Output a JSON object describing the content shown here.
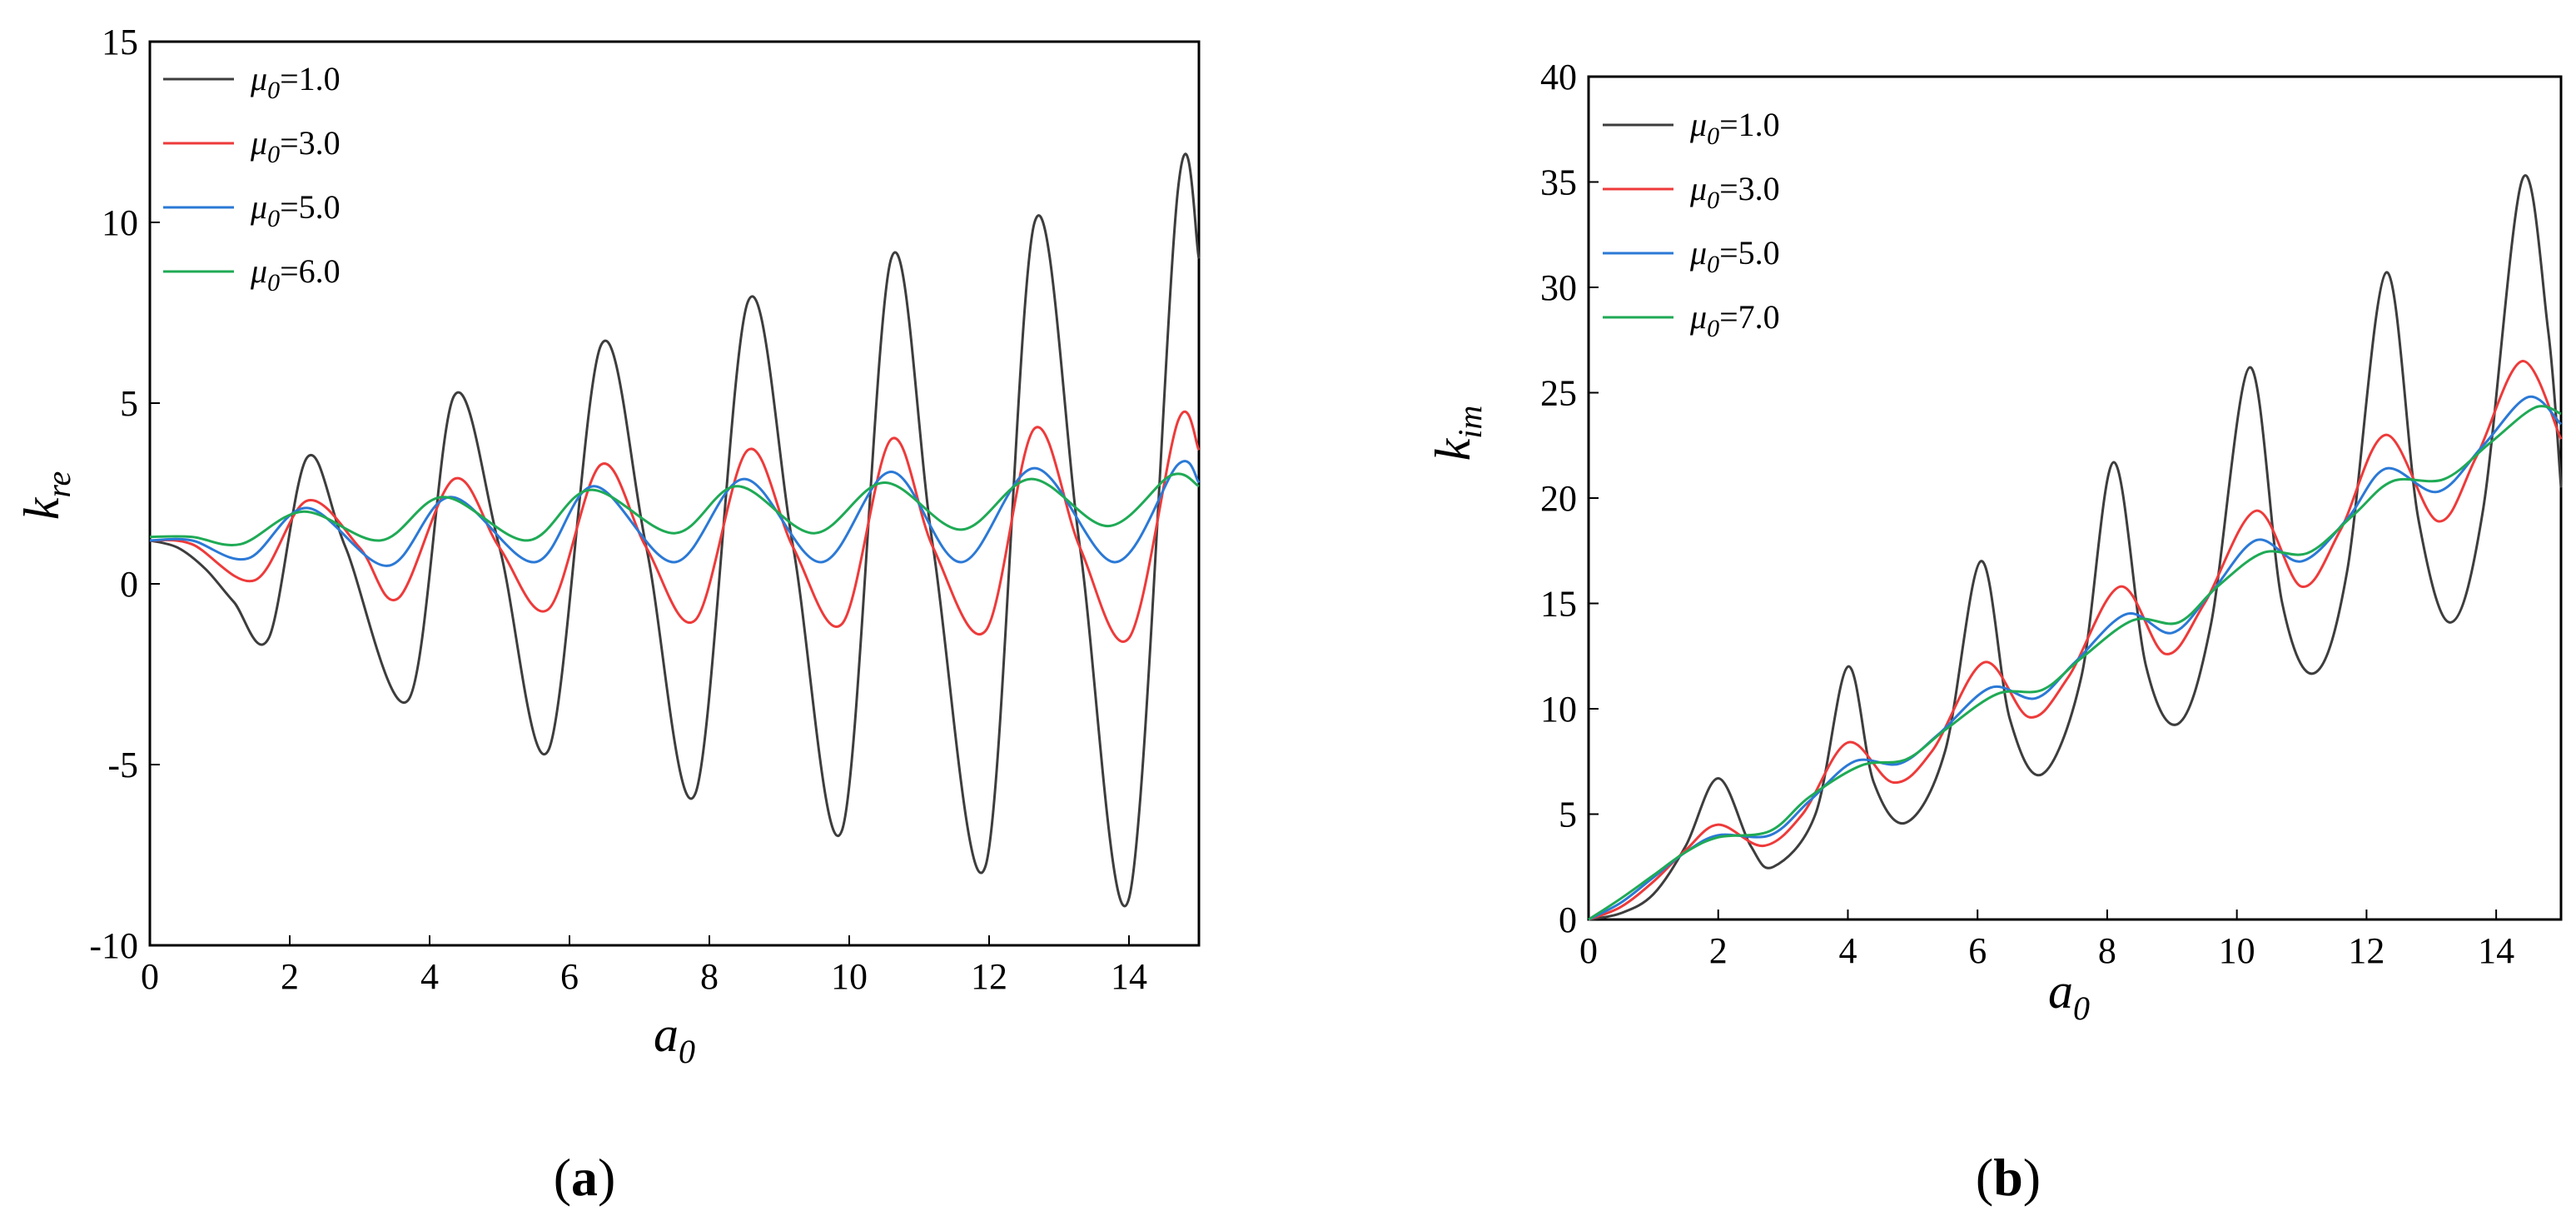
{
  "chart_data": [
    {
      "type": "line",
      "panel": "(a)",
      "panel_letter": "a",
      "xlabel": "a",
      "xlabel_sub": "0",
      "ylabel": "k",
      "ylabel_sub": "re",
      "xlim": [
        0,
        15
      ],
      "ylim": [
        -10,
        15
      ],
      "xticks": [
        0,
        2,
        4,
        6,
        8,
        10,
        12,
        14
      ],
      "yticks": [
        -10,
        -5,
        0,
        5,
        10,
        15
      ],
      "grid": false,
      "legend_position": "top-left",
      "series": [
        {
          "name": "μ0=1.0",
          "legend_mu": "μ",
          "legend_sub": "0",
          "legend_value": "=1.0",
          "color": "#3d3d3d",
          "x": [
            0,
            0.4,
            0.8,
            1.2,
            1.7,
            2.25,
            2.8,
            3.7,
            4.35,
            5.0,
            5.7,
            6.45,
            7.1,
            7.8,
            8.55,
            9.2,
            9.9,
            10.6,
            11.2,
            11.95,
            12.65,
            13.3,
            14.0,
            14.7,
            15.0
          ],
          "y": [
            1.2,
            1.0,
            0.4,
            -0.5,
            -1.5,
            3.5,
            1.0,
            -3.2,
            5.2,
            1.0,
            -4.6,
            6.6,
            1.0,
            -5.8,
            7.8,
            1.0,
            -6.8,
            9.0,
            1.0,
            -7.8,
            10.0,
            1.0,
            -8.7,
            10.9,
            9.0
          ]
        },
        {
          "name": "μ0=3.0",
          "legend_mu": "μ",
          "legend_sub": "0",
          "legend_value": "=3.0",
          "color": "#ee3a3a",
          "x": [
            0,
            0.6,
            1.5,
            2.25,
            3.0,
            3.55,
            4.35,
            5.0,
            5.7,
            6.45,
            7.1,
            7.8,
            8.55,
            9.2,
            9.9,
            10.6,
            11.2,
            11.95,
            12.65,
            13.3,
            14.0,
            14.7,
            15.0
          ],
          "y": [
            1.2,
            1.1,
            0.1,
            2.3,
            1.0,
            -0.4,
            2.9,
            1.0,
            -0.7,
            3.3,
            1.0,
            -1.0,
            3.7,
            1.0,
            -1.1,
            4.0,
            1.0,
            -1.3,
            4.3,
            1.0,
            -1.5,
            4.5,
            3.7
          ]
        },
        {
          "name": "μ0=5.0",
          "legend_mu": "μ",
          "legend_sub": "0",
          "legend_value": "=5.0",
          "color": "#2b79d6",
          "x": [
            0,
            0.6,
            1.4,
            2.25,
            3.4,
            4.3,
            5.5,
            6.35,
            7.5,
            8.5,
            9.6,
            10.6,
            11.6,
            12.65,
            13.8,
            14.7,
            15.0
          ],
          "y": [
            1.2,
            1.2,
            0.7,
            2.1,
            0.5,
            2.4,
            0.6,
            2.7,
            0.6,
            2.9,
            0.6,
            3.1,
            0.6,
            3.2,
            0.6,
            3.3,
            2.8
          ]
        },
        {
          "name": "μ0=6.0",
          "legend_mu": "μ",
          "legend_sub": "0",
          "legend_value": "=6.0",
          "color": "#1faa55",
          "x": [
            0,
            0.6,
            1.3,
            2.2,
            3.3,
            4.2,
            5.4,
            6.3,
            7.5,
            8.4,
            9.5,
            10.5,
            11.6,
            12.6,
            13.7,
            14.6,
            15.0
          ],
          "y": [
            1.3,
            1.3,
            1.1,
            2.0,
            1.2,
            2.4,
            1.2,
            2.6,
            1.4,
            2.7,
            1.4,
            2.8,
            1.5,
            2.9,
            1.6,
            3.0,
            2.7
          ]
        }
      ]
    },
    {
      "type": "line",
      "panel": "(b)",
      "panel_letter": "b",
      "xlabel": "a",
      "xlabel_sub": "0",
      "ylabel": "k",
      "ylabel_sub": "im",
      "xlim": [
        0,
        15
      ],
      "ylim": [
        0,
        40
      ],
      "xticks": [
        0,
        2,
        4,
        6,
        8,
        10,
        12,
        14
      ],
      "yticks": [
        0,
        5,
        10,
        15,
        20,
        25,
        30,
        35,
        40
      ],
      "grid": false,
      "legend_position": "top-left",
      "series": [
        {
          "name": "μ0=1.0",
          "legend_mu": "μ",
          "legend_sub": "0",
          "legend_value": "=1.0",
          "color": "#3d3d3d",
          "x": [
            0,
            0.5,
            1.0,
            1.5,
            2.0,
            2.5,
            2.85,
            3.5,
            4.0,
            4.4,
            4.9,
            5.5,
            6.05,
            6.5,
            7.0,
            7.6,
            8.1,
            8.6,
            9.1,
            9.6,
            10.2,
            10.7,
            11.2,
            11.7,
            12.3,
            12.8,
            13.3,
            13.8,
            14.4,
            14.8,
            15.0
          ],
          "y": [
            0,
            0.3,
            1.2,
            3.5,
            6.7,
            3.5,
            2.5,
            5.0,
            12.0,
            6.5,
            4.6,
            8.0,
            17.0,
            9.5,
            6.9,
            11.5,
            21.7,
            12.0,
            9.3,
            14.0,
            26.2,
            15.0,
            11.7,
            16.5,
            30.7,
            19.0,
            14.1,
            19.5,
            35.1,
            28.0,
            20.5
          ]
        },
        {
          "name": "μ0=3.0",
          "legend_mu": "μ",
          "legend_sub": "0",
          "legend_value": "=3.0",
          "color": "#ee3a3a",
          "x": [
            0,
            0.5,
            1.0,
            1.5,
            2.0,
            2.7,
            3.3,
            4.0,
            4.7,
            5.3,
            6.1,
            6.8,
            7.4,
            8.2,
            8.9,
            9.5,
            10.3,
            11.0,
            11.6,
            12.3,
            13.1,
            13.7,
            14.4,
            15.0
          ],
          "y": [
            0,
            0.6,
            1.8,
            3.3,
            4.5,
            3.5,
            5.0,
            8.4,
            6.5,
            8.0,
            12.2,
            9.6,
            11.5,
            15.8,
            12.6,
            15.0,
            19.4,
            15.8,
            18.5,
            23.0,
            18.9,
            22.0,
            26.5,
            22.8
          ]
        },
        {
          "name": "μ0=5.0",
          "legend_mu": "μ",
          "legend_sub": "0",
          "legend_value": "=5.0",
          "color": "#2b79d6",
          "x": [
            0,
            0.5,
            1.0,
            1.5,
            2.0,
            2.8,
            3.4,
            4.1,
            4.8,
            5.4,
            6.2,
            6.9,
            7.5,
            8.3,
            9.0,
            9.6,
            10.3,
            11.0,
            11.7,
            12.3,
            13.1,
            13.8,
            14.5,
            15.0
          ],
          "y": [
            0,
            0.8,
            2.0,
            3.2,
            4.0,
            4.0,
            5.6,
            7.5,
            7.4,
            8.8,
            11.0,
            10.5,
            12.2,
            14.5,
            13.6,
            15.5,
            18.0,
            17.0,
            19.0,
            21.4,
            20.3,
            22.5,
            24.8,
            23.5
          ]
        },
        {
          "name": "μ0=7.0",
          "legend_mu": "μ",
          "legend_sub": "0",
          "legend_value": "=7.0",
          "color": "#1faa55",
          "x": [
            0,
            0.5,
            1.0,
            1.5,
            2.0,
            2.8,
            3.4,
            4.2,
            4.9,
            5.5,
            6.3,
            7.0,
            7.6,
            8.4,
            9.1,
            9.7,
            10.4,
            11.1,
            11.8,
            12.4,
            13.2,
            13.9,
            14.6,
            15.0
          ],
          "y": [
            0,
            1.0,
            2.1,
            3.2,
            3.9,
            4.2,
            5.8,
            7.3,
            7.6,
            9.0,
            10.7,
            10.9,
            12.4,
            14.2,
            14.1,
            15.8,
            17.4,
            17.4,
            19.2,
            20.8,
            20.9,
            22.6,
            24.3,
            24.0
          ]
        }
      ]
    }
  ]
}
